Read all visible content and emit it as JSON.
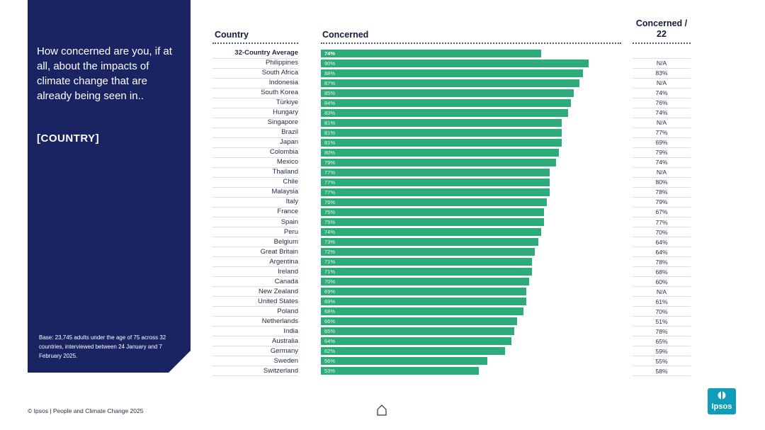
{
  "panel": {
    "question": "How concerned are you, if at all, about the impacts of climate change that are already being seen in..",
    "country_tag": "[COUNTRY]",
    "base_note": "Base: 23,745 adults under the age of 75 across 32 countries, interviewed between 24 January and 7 February 2025."
  },
  "footer": {
    "text": "© Ipsos | People and Climate Change 2025"
  },
  "logo": {
    "text": "Ipsos"
  },
  "colors": {
    "bar": "#2eab7b",
    "panel": "#1b2463",
    "logo": "#0f9db9"
  },
  "chart_data": {
    "type": "bar",
    "orientation": "horizontal",
    "headers": {
      "country": "Country",
      "concerned": "Concerned",
      "previous": "Concerned / 22"
    },
    "xlim": [
      0,
      100
    ],
    "rows": [
      {
        "country": "32-Country Average",
        "value": 74,
        "label": "74%",
        "prev": "",
        "bold": true
      },
      {
        "country": "Philippines",
        "value": 90,
        "label": "90%",
        "prev": "N/A"
      },
      {
        "country": "South Africa",
        "value": 88,
        "label": "88%",
        "prev": "83%"
      },
      {
        "country": "Indonesia",
        "value": 87,
        "label": "87%",
        "prev": "N/A"
      },
      {
        "country": "South Korea",
        "value": 85,
        "label": "85%",
        "prev": "74%"
      },
      {
        "country": "Türkiye",
        "value": 84,
        "label": "84%",
        "prev": "76%"
      },
      {
        "country": "Hungary",
        "value": 83,
        "label": "83%",
        "prev": "74%"
      },
      {
        "country": "Singapore",
        "value": 81,
        "label": "81%",
        "prev": "N/A"
      },
      {
        "country": "Brazil",
        "value": 81,
        "label": "81%",
        "prev": "77%"
      },
      {
        "country": "Japan",
        "value": 81,
        "label": "81%",
        "prev": "69%"
      },
      {
        "country": "Colombia",
        "value": 80,
        "label": "80%",
        "prev": "79%"
      },
      {
        "country": "Mexico",
        "value": 79,
        "label": "79%",
        "prev": "74%"
      },
      {
        "country": "Thailand",
        "value": 77,
        "label": "77%",
        "prev": "N/A"
      },
      {
        "country": "Chile",
        "value": 77,
        "label": "77%",
        "prev": "80%"
      },
      {
        "country": "Malaysia",
        "value": 77,
        "label": "77%",
        "prev": "78%"
      },
      {
        "country": "Italy",
        "value": 76,
        "label": "76%",
        "prev": "79%"
      },
      {
        "country": "France",
        "value": 75,
        "label": "75%",
        "prev": "67%"
      },
      {
        "country": "Spain",
        "value": 75,
        "label": "75%",
        "prev": "77%"
      },
      {
        "country": "Peru",
        "value": 74,
        "label": "74%",
        "prev": "70%"
      },
      {
        "country": "Belgium",
        "value": 73,
        "label": "73%",
        "prev": "64%"
      },
      {
        "country": "Great Britain",
        "value": 72,
        "label": "72%",
        "prev": "64%"
      },
      {
        "country": "Argentina",
        "value": 71,
        "label": "71%",
        "prev": "78%"
      },
      {
        "country": "Ireland",
        "value": 71,
        "label": "71%",
        "prev": "68%"
      },
      {
        "country": "Canada",
        "value": 70,
        "label": "70%",
        "prev": "60%"
      },
      {
        "country": "New Zealand",
        "value": 69,
        "label": "69%",
        "prev": "N/A"
      },
      {
        "country": "United States",
        "value": 69,
        "label": "69%",
        "prev": "61%"
      },
      {
        "country": "Poland",
        "value": 68,
        "label": "68%",
        "prev": "70%"
      },
      {
        "country": "Netherlands",
        "value": 66,
        "label": "66%",
        "prev": "51%"
      },
      {
        "country": "India",
        "value": 65,
        "label": "65%",
        "prev": "78%"
      },
      {
        "country": "Australia",
        "value": 64,
        "label": "64%",
        "prev": "65%"
      },
      {
        "country": "Germany",
        "value": 62,
        "label": "62%",
        "prev": "59%"
      },
      {
        "country": "Sweden",
        "value": 56,
        "label": "56%",
        "prev": "55%"
      },
      {
        "country": "Switzerland",
        "value": 53,
        "label": "53%",
        "prev": "58%"
      }
    ]
  }
}
